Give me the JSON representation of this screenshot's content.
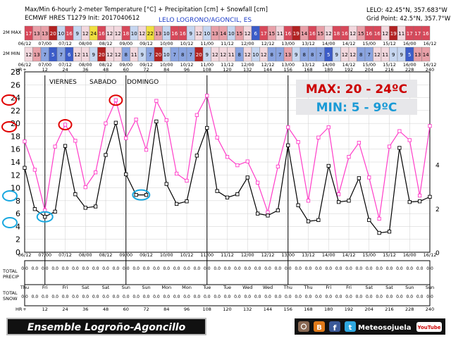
{
  "header": {
    "title": "Max/Min 6-hourly 2-meter Temperature [°C] + Precipitation [cm] + Snowfall [cm]",
    "model": "ECMWF HRES T1279 Init: 2017040612",
    "location": "LELO LOGRONO/AGONCIL, ES",
    "lelo_coords": "LELO: 42.45°N, 357.683°W",
    "grid_point": "Grid Point: 42.5°N, 357.7°W"
  },
  "row_labels": {
    "max": "2M MAX",
    "min": "2M MIN",
    "hr": "HR",
    "precip": [
      "TOTAL",
      "PRECIP"
    ],
    "snow": [
      "TOTAL",
      "SNOW"
    ]
  },
  "max_row": [
    17,
    13,
    13,
    20,
    10,
    16,
    9,
    12,
    24,
    16,
    12,
    12,
    18,
    10,
    12,
    22,
    13,
    10,
    16,
    16,
    9,
    12,
    10,
    13,
    14,
    10,
    15,
    12,
    6,
    17,
    15,
    11,
    16,
    19,
    14,
    16,
    15,
    12,
    18,
    16,
    12,
    15,
    16,
    16,
    12,
    19,
    11,
    17,
    17,
    16
  ],
  "min_row": [
    12,
    13,
    7,
    5,
    7,
    6,
    12,
    11,
    9,
    20,
    12,
    12,
    8,
    11,
    9,
    7,
    20,
    10,
    7,
    8,
    7,
    20,
    9,
    12,
    12,
    11,
    8,
    12,
    10,
    12,
    8,
    7,
    13,
    9,
    8,
    8,
    7,
    5,
    9,
    12,
    12,
    8,
    7,
    12,
    11,
    9,
    9,
    5,
    13,
    14
  ],
  "date_labels": [
    "06/12",
    "07/00",
    "07/12",
    "08/00",
    "08/12",
    "09/00",
    "09/12",
    "10/00",
    "10/12",
    "11/00",
    "11/12",
    "12/00",
    "12/12",
    "13/00",
    "13/12",
    "14/00",
    "14/12",
    "15/00",
    "15/12",
    "16/00",
    "16/12"
  ],
  "hour_labels": [
    "+",
    "12",
    "24",
    "36",
    "48",
    "60",
    "72",
    "84",
    "96",
    "108",
    "120",
    "132",
    "144",
    "156",
    "168",
    "180",
    "192",
    "204",
    "216",
    "228",
    "240"
  ],
  "day_labels": [
    "Thu",
    "Fri",
    "Fri",
    "Sat",
    "Sat",
    "Sun",
    "Sun",
    "Mon",
    "Mon",
    "Tue",
    "Tue",
    "Wed",
    "Wed",
    "Thu",
    "Thu",
    "Fri",
    "Fri",
    "Sat",
    "Sat",
    "Sun",
    "Sun"
  ],
  "weekday_annotations": [
    "VIERNES",
    "SABADO",
    "DOMINGO"
  ],
  "precip_values": "0.0",
  "snow_values": "0.0",
  "overlay": {
    "max_text": "MAX: 20 - 24ºC",
    "min_text": "MIN: 5 - 9ºC",
    "banner": "Ensemble Logroño-Agoncillo",
    "brand": "Meteosojuela",
    "youtube": "YouTube",
    "circled_left": [
      "24",
      "20",
      "9",
      "5"
    ]
  },
  "colors": {
    "max_line": "#ff3cc8",
    "min_line": "#000000",
    "red_circle": "#e00000",
    "blue_circle": "#19a8e0",
    "max_text": "#cc0000",
    "min_text": "#1a9ad6"
  },
  "chart_data": {
    "type": "line",
    "title": "Max/Min 6-hourly 2-meter Temperature [°C] + Precipitation [cm] + Snowfall [cm]",
    "xlabel": "",
    "ylabel": "",
    "x_unit": "forecast hours from 2017040612",
    "ylim": [
      0,
      28
    ],
    "y_ticks": [
      0,
      2,
      4,
      6,
      8,
      10,
      12,
      14,
      16,
      18,
      20,
      22,
      24,
      26,
      28
    ],
    "y2_ticks": [
      "0",
      "2",
      "4"
    ],
    "grid": true,
    "x_hours": [
      0,
      6,
      12,
      18,
      24,
      30,
      36,
      42,
      48,
      54,
      60,
      66,
      72,
      78,
      84,
      90,
      96,
      102,
      108,
      114,
      120,
      126,
      132,
      138,
      144,
      150,
      156,
      162,
      168,
      174,
      180,
      186,
      192,
      198,
      204,
      210,
      216,
      222,
      228,
      234,
      240
    ],
    "series": [
      {
        "values": [
          17.2,
          12.8,
          6.5,
          16.4,
          19.8,
          17.3,
          10.1,
          12.4,
          20.0,
          23.6,
          17.7,
          20.6,
          15.9,
          23.5,
          20.5,
          12.2,
          11.1,
          21.3,
          24.3,
          17.8,
          14.8,
          13.5,
          14.1,
          10.8,
          6.2,
          13.3,
          19.4,
          17.1,
          8.0,
          17.8,
          19.4,
          9.0,
          14.8,
          17.0,
          11.6,
          5.2,
          16.4,
          18.8,
          17.4,
          8.8,
          19.6
        ]
      },
      {
        "values": [
          13.1,
          6.7,
          5.5,
          6.3,
          16.5,
          9.0,
          6.9,
          7.1,
          15.1,
          20.1,
          12.1,
          8.9,
          8.9,
          20.3,
          10.6,
          7.5,
          7.9,
          15.0,
          19.3,
          9.5,
          8.5,
          9.0,
          11.6,
          6.0,
          5.7,
          6.5,
          16.6,
          7.3,
          4.8,
          5.0,
          13.4,
          7.8,
          8.0,
          11.5,
          5.0,
          3.0,
          3.2,
          16.2,
          7.8,
          7.9,
          8.6
        ]
      }
    ]
  }
}
